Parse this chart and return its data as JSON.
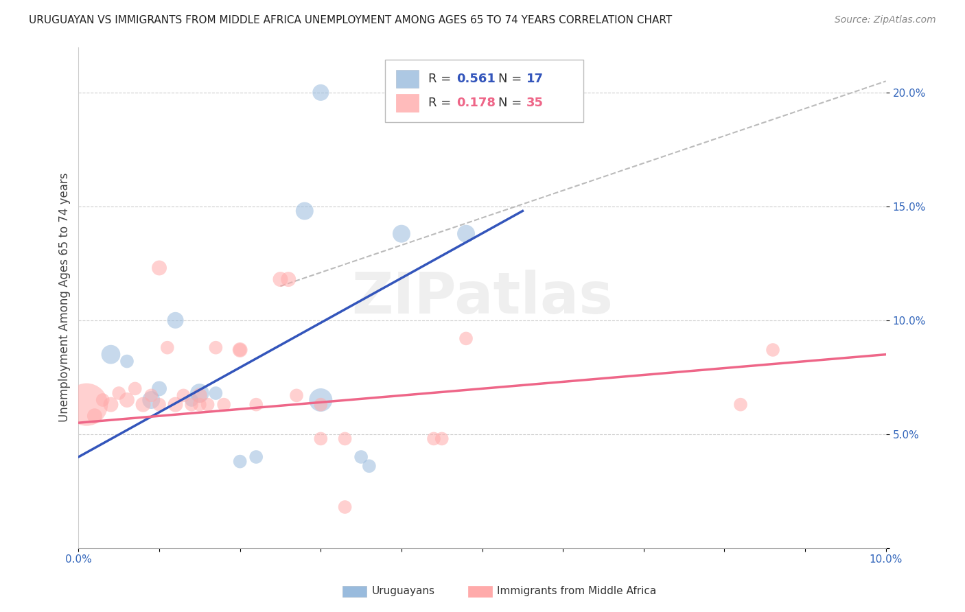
{
  "title": "URUGUAYAN VS IMMIGRANTS FROM MIDDLE AFRICA UNEMPLOYMENT AMONG AGES 65 TO 74 YEARS CORRELATION CHART",
  "source": "Source: ZipAtlas.com",
  "ylabel": "Unemployment Among Ages 65 to 74 years",
  "xlim": [
    0.0,
    0.1
  ],
  "ylim": [
    0.0,
    0.22
  ],
  "yticks": [
    0.0,
    0.05,
    0.1,
    0.15,
    0.2
  ],
  "ytick_labels": [
    "",
    "5.0%",
    "10.0%",
    "15.0%",
    "20.0%"
  ],
  "xticks": [
    0.0,
    0.01,
    0.02,
    0.03,
    0.04,
    0.05,
    0.06,
    0.07,
    0.08,
    0.09,
    0.1
  ],
  "xtick_labels": [
    "0.0%",
    "",
    "",
    "",
    "",
    "",
    "",
    "",
    "",
    "",
    "10.0%"
  ],
  "legend_blue_r": "0.561",
  "legend_blue_n": "17",
  "legend_pink_r": "0.178",
  "legend_pink_n": "35",
  "legend_label_blue": "Uruguayans",
  "legend_label_pink": "Immigrants from Middle Africa",
  "blue_color": "#99BBDD",
  "pink_color": "#FFAAAA",
  "blue_line_color": "#3355BB",
  "pink_line_color": "#EE6688",
  "ref_line_color": "#BBBBBB",
  "watermark_text": "ZIPatlas",
  "blue_line_x0": 0.0,
  "blue_line_y0": 0.04,
  "blue_line_x1": 0.055,
  "blue_line_y1": 0.148,
  "pink_line_x0": 0.0,
  "pink_line_y0": 0.055,
  "pink_line_x1": 0.1,
  "pink_line_y1": 0.085,
  "ref_line_x0": 0.025,
  "ref_line_y0": 0.115,
  "ref_line_x1": 0.1,
  "ref_line_y1": 0.205,
  "blue_points": [
    [
      0.004,
      0.085
    ],
    [
      0.006,
      0.082
    ],
    [
      0.009,
      0.065
    ],
    [
      0.01,
      0.07
    ],
    [
      0.012,
      0.1
    ],
    [
      0.014,
      0.065
    ],
    [
      0.015,
      0.068
    ],
    [
      0.017,
      0.068
    ],
    [
      0.02,
      0.038
    ],
    [
      0.022,
      0.04
    ],
    [
      0.028,
      0.148
    ],
    [
      0.03,
      0.065
    ],
    [
      0.03,
      0.2
    ],
    [
      0.035,
      0.04
    ],
    [
      0.036,
      0.036
    ],
    [
      0.04,
      0.138
    ],
    [
      0.048,
      0.138
    ]
  ],
  "blue_sizes": [
    400,
    200,
    350,
    250,
    300,
    200,
    400,
    200,
    200,
    200,
    350,
    600,
    300,
    200,
    200,
    350,
    350
  ],
  "pink_points": [
    [
      0.001,
      0.063
    ],
    [
      0.002,
      0.058
    ],
    [
      0.003,
      0.065
    ],
    [
      0.004,
      0.063
    ],
    [
      0.005,
      0.068
    ],
    [
      0.006,
      0.065
    ],
    [
      0.007,
      0.07
    ],
    [
      0.008,
      0.063
    ],
    [
      0.009,
      0.067
    ],
    [
      0.01,
      0.063
    ],
    [
      0.01,
      0.123
    ],
    [
      0.011,
      0.088
    ],
    [
      0.012,
      0.063
    ],
    [
      0.013,
      0.067
    ],
    [
      0.014,
      0.063
    ],
    [
      0.015,
      0.067
    ],
    [
      0.015,
      0.063
    ],
    [
      0.016,
      0.063
    ],
    [
      0.017,
      0.088
    ],
    [
      0.018,
      0.063
    ],
    [
      0.02,
      0.087
    ],
    [
      0.02,
      0.087
    ],
    [
      0.022,
      0.063
    ],
    [
      0.025,
      0.118
    ],
    [
      0.026,
      0.118
    ],
    [
      0.027,
      0.067
    ],
    [
      0.03,
      0.048
    ],
    [
      0.03,
      0.063
    ],
    [
      0.033,
      0.048
    ],
    [
      0.033,
      0.018
    ],
    [
      0.044,
      0.048
    ],
    [
      0.045,
      0.048
    ],
    [
      0.048,
      0.092
    ],
    [
      0.082,
      0.063
    ],
    [
      0.086,
      0.087
    ]
  ],
  "pink_sizes": [
    2000,
    250,
    200,
    250,
    200,
    250,
    200,
    250,
    200,
    200,
    250,
    200,
    250,
    200,
    200,
    250,
    200,
    200,
    200,
    200,
    250,
    200,
    200,
    250,
    250,
    200,
    200,
    200,
    200,
    200,
    200,
    200,
    200,
    200,
    200
  ]
}
